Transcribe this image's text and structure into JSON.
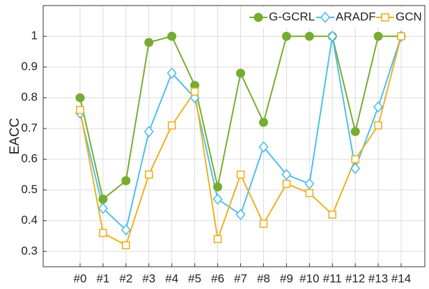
{
  "chart_data": {
    "type": "line",
    "y_label": "EACC",
    "categories": [
      "#0",
      "#1",
      "#2",
      "#3",
      "#4",
      "#5",
      "#6",
      "#7",
      "#8",
      "#9",
      "#10",
      "#11",
      "#12",
      "#13",
      "#14"
    ],
    "series": [
      {
        "name": "G-GCRL",
        "color": "#77ac30",
        "marker": "circle",
        "values": [
          0.8,
          0.47,
          0.53,
          0.98,
          1,
          0.84,
          0.51,
          0.88,
          0.72,
          1,
          1,
          1,
          0.69,
          1,
          1
        ]
      },
      {
        "name": "ARADF",
        "color": "#4dbeee",
        "marker": "diamond",
        "values": [
          0.75,
          0.44,
          0.37,
          0.69,
          0.88,
          0.8,
          0.47,
          0.42,
          0.64,
          0.55,
          0.52,
          1,
          0.57,
          0.77,
          1
        ]
      },
      {
        "name": "GCN",
        "color": "#edb120",
        "marker": "square",
        "values": [
          0.76,
          0.36,
          0.32,
          0.55,
          0.71,
          0.82,
          0.34,
          0.55,
          0.39,
          0.52,
          0.49,
          0.42,
          0.6,
          0.71,
          1
        ]
      }
    ],
    "ylim": [
      0.25,
      1.1
    ],
    "yticks": [
      0.3,
      0.4,
      0.5,
      0.6,
      0.7,
      0.8,
      0.9,
      1
    ],
    "grid": true,
    "legend": "top-right"
  }
}
